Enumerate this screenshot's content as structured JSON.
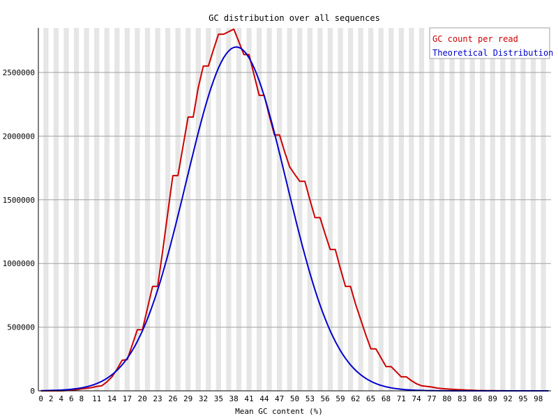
{
  "chart_data": {
    "type": "line",
    "title": "GC distribution over all sequences",
    "xlabel": "Mean GC content (%)",
    "ylabel": "",
    "xlim": [
      0,
      101
    ],
    "ylim": [
      0,
      2850000
    ],
    "y_ticks": [
      0,
      500000,
      1000000,
      1500000,
      2000000,
      2500000
    ],
    "y_tick_labels": [
      "0",
      "500000",
      "1000000",
      "1500000",
      "2000000",
      "2500000"
    ],
    "x_tick_labels": [
      "0",
      "2",
      "4",
      "6",
      "8",
      "11",
      "14",
      "17",
      "20",
      "23",
      "26",
      "29",
      "32",
      "35",
      "38",
      "41",
      "44",
      "47",
      "50",
      "53",
      "56",
      "59",
      "62",
      "65",
      "68",
      "71",
      "74",
      "77",
      "80",
      "83",
      "86",
      "89",
      "92",
      "95",
      "98"
    ],
    "grid": "horizontal lines with alternating vertical bands",
    "legend_position": "top-right",
    "colors": {
      "band": "#e6e6e6",
      "grid": "#a0a0a0",
      "axis": "#000000"
    },
    "series": [
      {
        "name": "GC count per read",
        "color": "#cc0000",
        "points": [
          [
            0,
            0
          ],
          [
            1,
            0
          ],
          [
            2,
            0
          ],
          [
            3,
            0
          ],
          [
            4,
            0
          ],
          [
            5,
            2000
          ],
          [
            6,
            5000
          ],
          [
            7,
            9000
          ],
          [
            8,
            15000
          ],
          [
            9,
            20000
          ],
          [
            10,
            25000
          ],
          [
            11,
            35000
          ],
          [
            12,
            40000
          ],
          [
            13,
            70000
          ],
          [
            14,
            110000
          ],
          [
            15,
            170000
          ],
          [
            16,
            240000
          ],
          [
            17,
            245000
          ],
          [
            18,
            360000
          ],
          [
            19,
            480000
          ],
          [
            20,
            480000
          ],
          [
            21,
            650000
          ],
          [
            22,
            820000
          ],
          [
            23,
            820000
          ],
          [
            24,
            1100000
          ],
          [
            25,
            1400000
          ],
          [
            26,
            1690000
          ],
          [
            27,
            1690000
          ],
          [
            28,
            1920000
          ],
          [
            29,
            2150000
          ],
          [
            30,
            2150000
          ],
          [
            31,
            2380000
          ],
          [
            32,
            2550000
          ],
          [
            33,
            2550000
          ],
          [
            34,
            2680000
          ],
          [
            35,
            2800000
          ],
          [
            36,
            2800000
          ],
          [
            37,
            2820000
          ],
          [
            38,
            2840000
          ],
          [
            39,
            2740000
          ],
          [
            40,
            2640000
          ],
          [
            41,
            2640000
          ],
          [
            42,
            2480000
          ],
          [
            43,
            2320000
          ],
          [
            44,
            2320000
          ],
          [
            45,
            2160000
          ],
          [
            46,
            2010000
          ],
          [
            47,
            2010000
          ],
          [
            48,
            1880000
          ],
          [
            49,
            1760000
          ],
          [
            50,
            1700000
          ],
          [
            51,
            1645000
          ],
          [
            52,
            1645000
          ],
          [
            53,
            1500000
          ],
          [
            54,
            1360000
          ],
          [
            55,
            1360000
          ],
          [
            56,
            1230000
          ],
          [
            57,
            1110000
          ],
          [
            58,
            1110000
          ],
          [
            59,
            960000
          ],
          [
            60,
            820000
          ],
          [
            61,
            820000
          ],
          [
            62,
            680000
          ],
          [
            63,
            560000
          ],
          [
            64,
            440000
          ],
          [
            65,
            330000
          ],
          [
            66,
            330000
          ],
          [
            67,
            260000
          ],
          [
            68,
            190000
          ],
          [
            69,
            190000
          ],
          [
            70,
            150000
          ],
          [
            71,
            110000
          ],
          [
            72,
            110000
          ],
          [
            73,
            80000
          ],
          [
            74,
            55000
          ],
          [
            75,
            40000
          ],
          [
            76,
            35000
          ],
          [
            77,
            30000
          ],
          [
            78,
            22000
          ],
          [
            79,
            18000
          ],
          [
            80,
            15000
          ],
          [
            81,
            12000
          ],
          [
            82,
            10000
          ],
          [
            83,
            8000
          ],
          [
            84,
            6000
          ],
          [
            85,
            5000
          ],
          [
            86,
            3000
          ],
          [
            87,
            2000
          ],
          [
            88,
            1500
          ],
          [
            89,
            1000
          ],
          [
            90,
            500
          ],
          [
            91,
            300
          ],
          [
            92,
            200
          ],
          [
            93,
            100
          ],
          [
            94,
            0
          ],
          [
            95,
            0
          ],
          [
            96,
            0
          ],
          [
            97,
            0
          ],
          [
            98,
            0
          ],
          [
            99,
            0
          ],
          [
            100,
            0
          ]
        ]
      },
      {
        "name": "Theoretical Distribution",
        "color": "#0000cc",
        "gaussian": {
          "mean": 38.5,
          "sd": 9.9,
          "peak": 2700000,
          "x_from": 0,
          "x_to": 100
        }
      }
    ]
  }
}
